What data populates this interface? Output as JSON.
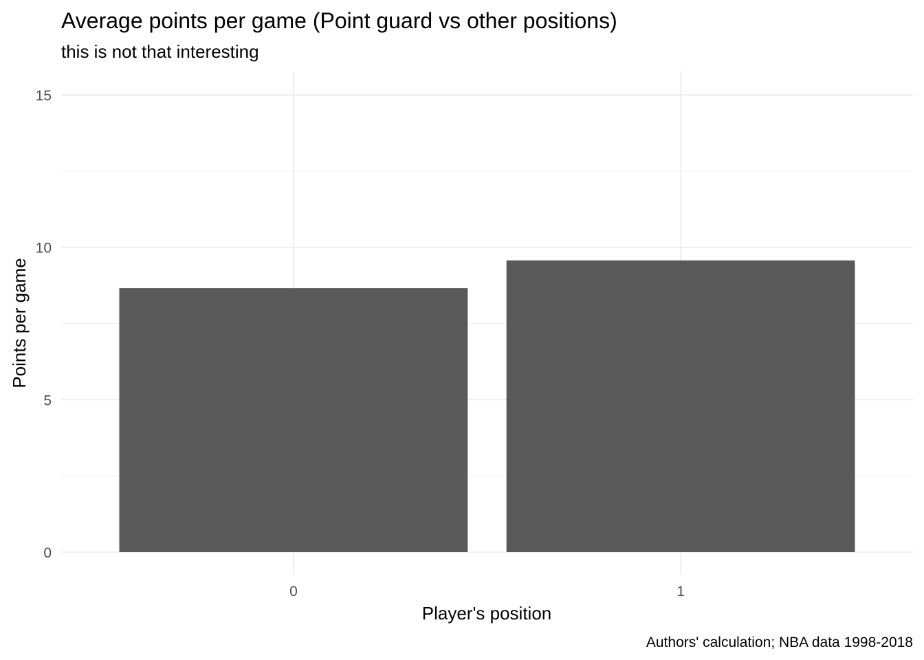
{
  "chart_data": {
    "type": "bar",
    "title": "Average points per game (Point guard vs other positions)",
    "subtitle": "this is not that interesting",
    "xlabel": "Player's position",
    "ylabel": "Points per game",
    "caption": "Authors' calculation; NBA data 1998-2018",
    "categories": [
      "0",
      "1"
    ],
    "values": [
      8.66,
      9.57
    ],
    "ylim": [
      0,
      15
    ],
    "yticks": [
      0,
      5,
      10,
      15
    ],
    "ytick_labels": [
      "0",
      "5",
      "10",
      "15"
    ],
    "grid": true,
    "bar_color": "#595959",
    "grid_color": "#ebebeb"
  }
}
